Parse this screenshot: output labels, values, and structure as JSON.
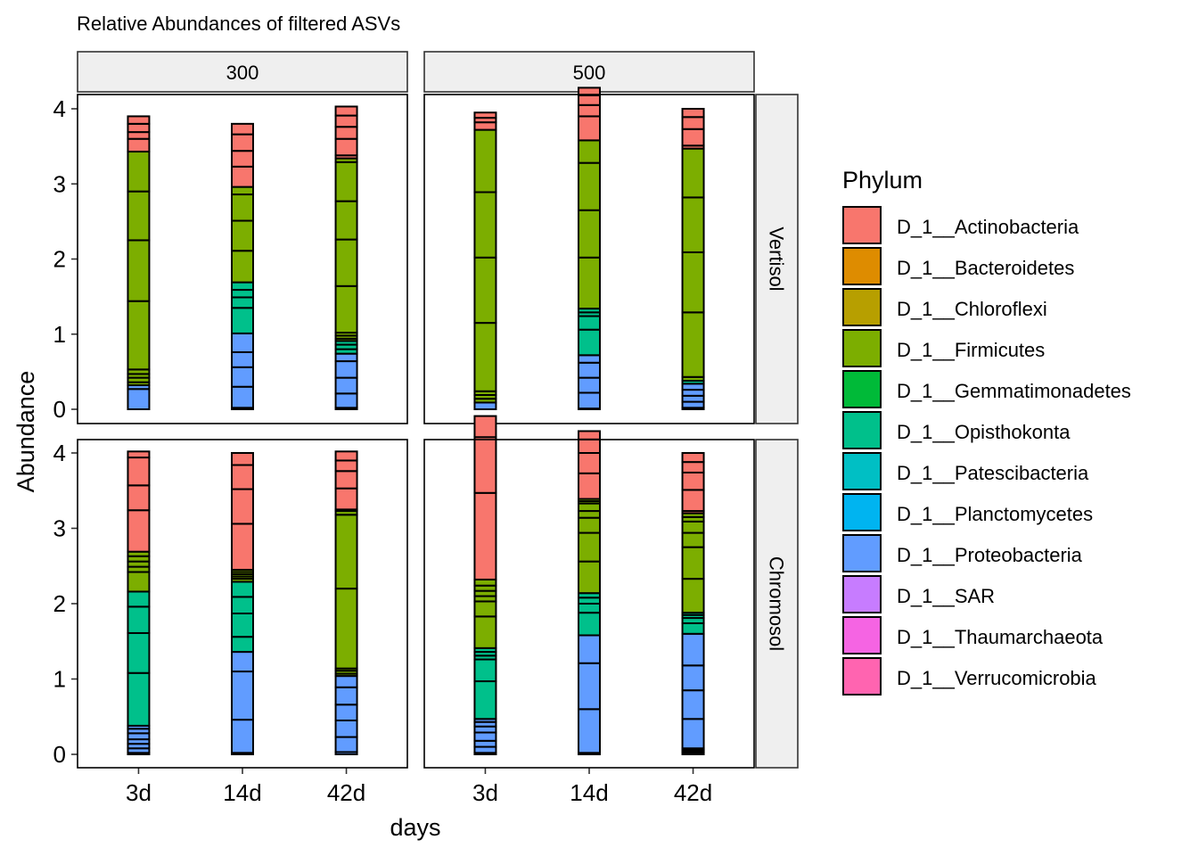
{
  "chart_data": {
    "type": "bar",
    "stacked": true,
    "title": "Relative Abundances of filtered ASVs",
    "xlabel": "days",
    "ylabel": "Abundance",
    "ylim": [
      0,
      4
    ],
    "yticks": [
      "0",
      "1",
      "2",
      "3",
      "4"
    ],
    "categories": [
      "3d",
      "14d",
      "42d"
    ],
    "column_facets": [
      "300",
      "500"
    ],
    "row_facets": [
      "Vertisol",
      "Chromosol"
    ],
    "grid": false,
    "legend": {
      "title": "Phylum",
      "placement": "right",
      "entries": [
        {
          "name": "D_1__Actinobacteria",
          "color": "#F8766D"
        },
        {
          "name": "D_1__Bacteroidetes",
          "color": "#DE8C00"
        },
        {
          "name": "D_1__Chloroflexi",
          "color": "#B79F00"
        },
        {
          "name": "D_1__Firmicutes",
          "color": "#7CAE00"
        },
        {
          "name": "D_1__Gemmatimonadetes",
          "color": "#00BA38"
        },
        {
          "name": "D_1__Opisthokonta",
          "color": "#00C08B"
        },
        {
          "name": "D_1__Patescibacteria",
          "color": "#00BFC4"
        },
        {
          "name": "D_1__Planctomycetes",
          "color": "#00B4F0"
        },
        {
          "name": "D_1__Proteobacteria",
          "color": "#619CFF"
        },
        {
          "name": "D_1__SAR",
          "color": "#C77CFF"
        },
        {
          "name": "D_1__Thaumarchaeota",
          "color": "#F564E3"
        },
        {
          "name": "D_1__Verrucomicrobia",
          "color": "#FF64B0"
        }
      ]
    },
    "panels": [
      {
        "column": "300",
        "row": "Vertisol",
        "bars": [
          {
            "category": "3d",
            "segments": [
              {
                "phylum": "D_1__Proteobacteria",
                "values": [
                  0.27,
                  0.05
                ]
              },
              {
                "phylum": "D_1__Firmicutes",
                "values": [
                  0.04,
                  0.06,
                  0.05,
                  0.06,
                  0.91,
                  0.81,
                  0.65,
                  0.53
                ]
              },
              {
                "phylum": "D_1__Actinobacteria",
                "values": [
                  0.17,
                  0.09,
                  0.11,
                  0.1
                ]
              }
            ]
          },
          {
            "category": "14d",
            "segments": [
              {
                "phylum": "D_1__Proteobacteria",
                "values": [
                  0.02,
                  0.28,
                  0.26,
                  0.2,
                  0.25
                ]
              },
              {
                "phylum": "D_1__Opisthokonta",
                "values": [
                  0.34,
                  0.14,
                  0.1,
                  0.1
                ]
              },
              {
                "phylum": "D_1__Firmicutes",
                "values": [
                  0.42,
                  0.4,
                  0.35,
                  0.1
                ]
              },
              {
                "phylum": "D_1__Actinobacteria",
                "values": [
                  0.27,
                  0.21,
                  0.22,
                  0.14
                ]
              }
            ]
          },
          {
            "category": "42d",
            "segments": [
              {
                "phylum": "D_1__Proteobacteria",
                "values": [
                  0.02,
                  0.19,
                  0.21,
                  0.22,
                  0.1
                ]
              },
              {
                "phylum": "D_1__Opisthokonta",
                "values": [
                  0.06,
                  0.06,
                  0.05
                ]
              },
              {
                "phylum": "D_1__Firmicutes",
                "values": [
                  0.03,
                  0.04,
                  0.04,
                  0.62,
                  0.62,
                  0.51,
                  0.52,
                  0.05
                ]
              },
              {
                "phylum": "D_1__Actinobacteria",
                "values": [
                  0.04,
                  0.22,
                  0.16,
                  0.15,
                  0.12
                ]
              }
            ]
          }
        ]
      },
      {
        "column": "500",
        "row": "Vertisol",
        "bars": [
          {
            "category": "3d",
            "segments": [
              {
                "phylum": "D_1__Proteobacteria",
                "values": [
                  0.09
                ]
              },
              {
                "phylum": "D_1__Firmicutes",
                "values": [
                  0.05,
                  0.05,
                  0.05,
                  0.91,
                  0.87,
                  0.87,
                  0.83
                ]
              },
              {
                "phylum": "D_1__Actinobacteria",
                "values": [
                  0.1,
                  0.06,
                  0.07
                ]
              }
            ]
          },
          {
            "category": "14d",
            "segments": [
              {
                "phylum": "D_1__Proteobacteria",
                "values": [
                  0.01,
                  0.21,
                  0.2,
                  0.2,
                  0.1
                ]
              },
              {
                "phylum": "D_1__Opisthokonta",
                "values": [
                  0.34,
                  0.18,
                  0.05,
                  0.05
                ]
              },
              {
                "phylum": "D_1__Firmicutes",
                "values": [
                  0.68,
                  0.63,
                  0.63,
                  0.3
                ]
              },
              {
                "phylum": "D_1__Actinobacteria",
                "values": [
                  0.32,
                  0.15,
                  0.13,
                  0.1
                ]
              }
            ]
          },
          {
            "category": "42d",
            "segments": [
              {
                "phylum": "D_1__Proteobacteria",
                "values": [
                  0.02,
                  0.08,
                  0.08,
                  0.08,
                  0.08
                ]
              },
              {
                "phylum": "D_1__Opisthokonta",
                "values": [
                  0.04
                ]
              },
              {
                "phylum": "D_1__Firmicutes",
                "values": [
                  0.05,
                  0.86,
                  0.8,
                  0.73,
                  0.65
                ]
              },
              {
                "phylum": "D_1__Actinobacteria",
                "values": [
                  0.04,
                  0.22,
                  0.16,
                  0.11
                ]
              }
            ]
          }
        ]
      },
      {
        "column": "300",
        "row": "Chromosol",
        "bars": [
          {
            "category": "3d",
            "segments": [
              {
                "phylum": "D_1__Proteobacteria",
                "values": [
                  0.02,
                  0.06,
                  0.06,
                  0.06,
                  0.08,
                  0.06,
                  0.04
                ]
              },
              {
                "phylum": "D_1__Opisthokonta",
                "values": [
                  0.7,
                  0.53,
                  0.35,
                  0.2
                ]
              },
              {
                "phylum": "D_1__Firmicutes",
                "values": [
                  0.26,
                  0.07,
                  0.07,
                  0.07,
                  0.06
                ]
              },
              {
                "phylum": "D_1__Actinobacteria",
                "values": [
                  0.55,
                  0.33,
                  0.37,
                  0.08
                ]
              }
            ]
          },
          {
            "category": "14d",
            "segments": [
              {
                "phylum": "D_1__Proteobacteria",
                "values": [
                  0.02,
                  0.44,
                  0.64,
                  0.26
                ]
              },
              {
                "phylum": "D_1__Opisthokonta",
                "values": [
                  0.2,
                  0.31,
                  0.22,
                  0.2
                ]
              },
              {
                "phylum": "D_1__Firmicutes",
                "values": [
                  0.04,
                  0.03,
                  0.03,
                  0.03,
                  0.03
                ]
              },
              {
                "phylum": "D_1__Actinobacteria",
                "values": [
                  0.61,
                  0.46,
                  0.32,
                  0.16
                ]
              }
            ]
          },
          {
            "category": "42d",
            "segments": [
              {
                "phylum": "D_1__Proteobacteria",
                "values": [
                  0.03,
                  0.2,
                  0.22,
                  0.21,
                  0.23,
                  0.15
                ]
              },
              {
                "phylum": "D_1__Firmicutes",
                "values": [
                  0.03,
                  0.04,
                  0.03,
                  1.06,
                  0.98,
                  0.05
                ]
              },
              {
                "phylum": "D_1__Actinobacteria",
                "values": [
                  0.02,
                  0.28,
                  0.23,
                  0.14,
                  0.12
                ]
              }
            ]
          }
        ]
      },
      {
        "column": "500",
        "row": "Chromosol",
        "bars": [
          {
            "category": "3d",
            "segments": [
              {
                "phylum": "D_1__Proteobacteria",
                "values": [
                  0.02,
                  0.08,
                  0.08,
                  0.11,
                  0.08,
                  0.06,
                  0.04
                ]
              },
              {
                "phylum": "D_1__Opisthokonta",
                "values": [
                  0.5,
                  0.29,
                  0.05,
                  0.05,
                  0.05
                ]
              },
              {
                "phylum": "D_1__Firmicutes",
                "values": [
                  0.42,
                  0.2,
                  0.07,
                  0.07,
                  0.07,
                  0.08
                ]
              },
              {
                "phylum": "D_1__Actinobacteria",
                "values": [
                  1.15,
                  0.74,
                  0.28
                ]
              }
            ]
          },
          {
            "category": "14d",
            "segments": [
              {
                "phylum": "D_1__Proteobacteria",
                "values": [
                  0.02,
                  0.58,
                  0.61,
                  0.37
                ]
              },
              {
                "phylum": "D_1__Opisthokonta",
                "values": [
                  0.3,
                  0.12,
                  0.08,
                  0.06
                ]
              },
              {
                "phylum": "D_1__Firmicutes",
                "values": [
                  0.42,
                  0.38,
                  0.2,
                  0.09,
                  0.1,
                  0.03,
                  0.03
                ]
              },
              {
                "phylum": "D_1__Actinobacteria",
                "values": [
                  0.34,
                  0.27,
                  0.18,
                  0.11
                ]
              }
            ]
          },
          {
            "category": "42d",
            "segments": [
              {
                "phylum": "D_1__Proteobacteria",
                "values": [
                  0.02,
                  0.02,
                  0.02,
                  0.02,
                  0.39,
                  0.38,
                  0.33,
                  0.42
                ]
              },
              {
                "phylum": "D_1__Opisthokonta",
                "values": [
                  0.14,
                  0.07,
                  0.04,
                  0.03
                ]
              },
              {
                "phylum": "D_1__Firmicutes",
                "values": [
                  0.45,
                  0.42,
                  0.19,
                  0.15,
                  0.06,
                  0.05
                ]
              },
              {
                "phylum": "D_1__Actinobacteria",
                "values": [
                  0.03,
                  0.28,
                  0.23,
                  0.14,
                  0.12
                ]
              }
            ]
          }
        ]
      }
    ]
  }
}
